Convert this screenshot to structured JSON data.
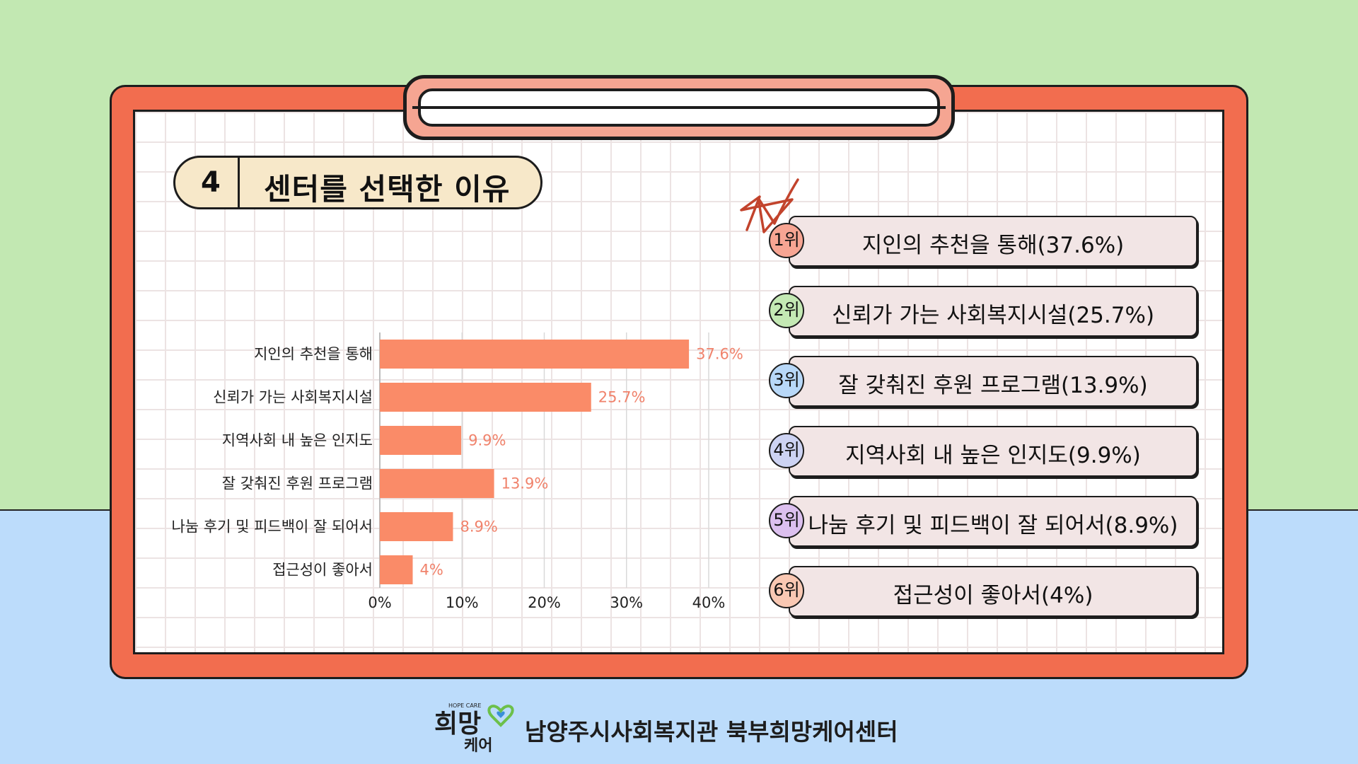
{
  "slide": {
    "number": "4",
    "title": "센터를 선택한 이유",
    "footer": "남양주시사회복지관 북부희망케어센터",
    "logo_small": "HOPE CARE",
    "logo_big": "희망",
    "logo_sub": "케어"
  },
  "colors": {
    "bar": "#fa8b68",
    "value_label": "#f0826b",
    "board": "#f26d4f"
  },
  "chart_data": {
    "type": "bar",
    "orientation": "horizontal",
    "categories": [
      "지인의 추천을 통해",
      "신뢰가 가는 사회복지시설",
      "지역사회 내 높은 인지도",
      "잘 갖춰진 후원 프로그램",
      "나눔 후기 및 피드백이 잘 되어서",
      "접근성이 좋아서"
    ],
    "values": [
      37.6,
      25.7,
      9.9,
      13.9,
      8.9,
      4
    ],
    "value_labels": [
      "37.6%",
      "25.7%",
      "9.9%",
      "13.9%",
      "8.9%",
      "4%"
    ],
    "x_ticks": [
      "0%",
      "10%",
      "20%",
      "30%",
      "40%"
    ],
    "xlim": [
      0,
      40
    ],
    "grid": true
  },
  "ranking": [
    {
      "rank": "1위",
      "text": "지인의 추천을 통해(37.6%)",
      "color": "#f7a593"
    },
    {
      "rank": "2위",
      "text": "신뢰가 가는 사회복지시설(25.7%)",
      "color": "#c4e9b4"
    },
    {
      "rank": "3위",
      "text": "잘 갖춰진 후원 프로그램(13.9%)",
      "color": "#b8d8f8"
    },
    {
      "rank": "4위",
      "text": "지역사회 내 높은 인지도(9.9%)",
      "color": "#cdd3f3"
    },
    {
      "rank": "5위",
      "text": "나눔 후기 및 피드백이 잘 되어서(8.9%)",
      "color": "#dcc0ef"
    },
    {
      "rank": "6위",
      "text": "접근성이 좋아서(4%)",
      "color": "#f9c8b3"
    }
  ]
}
